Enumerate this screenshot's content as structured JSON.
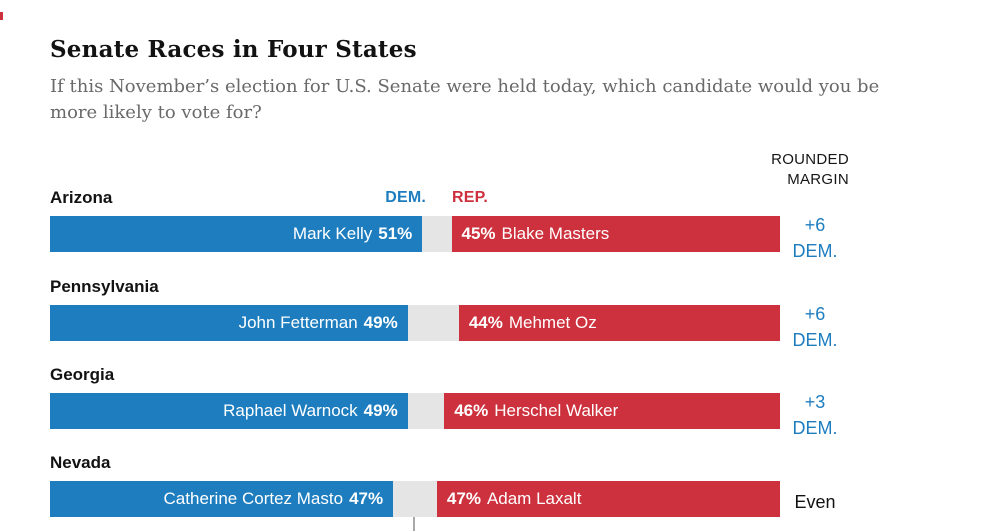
{
  "header": {
    "title": "Senate Races in Four States",
    "subtitle_line1": "If this November’s election for U.S. Senate were held today, which candidate would you be",
    "subtitle_line2": "more likely to vote for?"
  },
  "legend": {
    "dem_label": "DEM.",
    "rep_label": "REP.",
    "margin_header": "ROUNDED\nMARGIN"
  },
  "colors": {
    "dem_blue": "#1d7dbf",
    "rep_red": "#cc313d",
    "track_gray": "#e4e5e4",
    "title_black": "#121212",
    "subtitle_gray": "#696969"
  },
  "rows": [
    {
      "state": "Arizona",
      "dem_name": "Mark Kelly",
      "dem_pct_label": "51%",
      "dem_value": 51,
      "rep_pct_label": "45%",
      "rep_value": 45,
      "rep_name": "Blake Masters",
      "margin_value": "+6",
      "margin_party": "DEM."
    },
    {
      "state": "Pennsylvania",
      "dem_name": "John Fetterman",
      "dem_pct_label": "49%",
      "dem_value": 49,
      "rep_pct_label": "44%",
      "rep_value": 44,
      "rep_name": "Mehmet Oz",
      "margin_value": "+6",
      "margin_party": "DEM."
    },
    {
      "state": "Georgia",
      "dem_name": "Raphael Warnock",
      "dem_pct_label": "49%",
      "dem_value": 49,
      "rep_pct_label": "46%",
      "rep_value": 46,
      "rep_name": "Herschel Walker",
      "margin_value": "+3",
      "margin_party": "DEM."
    },
    {
      "state": "Nevada",
      "dem_name": "Catherine Cortez Masto",
      "dem_pct_label": "47%",
      "dem_value": 47,
      "rep_pct_label": "47%",
      "rep_value": 47,
      "rep_name": "Adam Laxalt",
      "margin_value": "Even",
      "margin_party": ""
    }
  ],
  "chart_data": {
    "type": "bar",
    "subtype": "diverging-horizontal",
    "title": "Senate Races in Four States",
    "subtitle": "If this November’s election for U.S. Senate were held today, which candidate would you be more likely to vote for?",
    "unit": "percent",
    "categories": [
      "Arizona",
      "Pennsylvania",
      "Georgia",
      "Nevada"
    ],
    "series": [
      {
        "name": "DEM.",
        "candidates": [
          "Mark Kelly",
          "John Fetterman",
          "Raphael Warnock",
          "Catherine Cortez Masto"
        ],
        "values": [
          51,
          49,
          49,
          47
        ],
        "color": "#1d7dbf",
        "anchor": "left"
      },
      {
        "name": "REP.",
        "candidates": [
          "Blake Masters",
          "Mehmet Oz",
          "Herschel Walker",
          "Adam Laxalt"
        ],
        "values": [
          45,
          44,
          46,
          47
        ],
        "color": "#cc313d",
        "anchor": "right"
      }
    ],
    "rounded_margins": [
      "+6 DEM.",
      "+6 DEM.",
      "+3 DEM.",
      "Even"
    ],
    "margin_column_header": "ROUNDED MARGIN",
    "axis": {
      "range": [
        0,
        100
      ],
      "midpoint_tick": 50,
      "grid": false
    },
    "legend_position": "above-first-row-at-bar-gap"
  }
}
